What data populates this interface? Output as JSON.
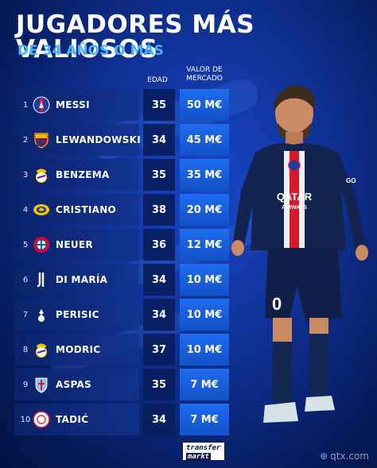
{
  "header": {
    "title": "JUGADORES MÁS VALIOSOS",
    "subtitle": "DE 34 AÑOS O MÁS"
  },
  "columns": {
    "age": "EDAD",
    "value_line1": "VALOR DE",
    "value_line2": "MERCADO"
  },
  "players": [
    {
      "rank": "1",
      "club_icon": "psg-crest-icon",
      "name": "MESSI",
      "age": "35",
      "value": "50 M€"
    },
    {
      "rank": "2",
      "club_icon": "barcelona-crest-icon",
      "name": "LEWANDOWSKI",
      "age": "34",
      "value": "45 M€"
    },
    {
      "rank": "3",
      "club_icon": "real-madrid-crest-icon",
      "name": "BENZEMA",
      "age": "35",
      "value": "35 M€"
    },
    {
      "rank": "4",
      "club_icon": "al-nassr-crest-icon",
      "name": "CRISTIANO",
      "age": "38",
      "value": "20 M€"
    },
    {
      "rank": "5",
      "club_icon": "bayern-crest-icon",
      "name": "NEUER",
      "age": "36",
      "value": "12 M€"
    },
    {
      "rank": "6",
      "club_icon": "juventus-crest-icon",
      "name": "DI MARÍA",
      "age": "34",
      "value": "10 M€"
    },
    {
      "rank": "7",
      "club_icon": "tottenham-crest-icon",
      "name": "PERISIC",
      "age": "34",
      "value": "10 M€"
    },
    {
      "rank": "8",
      "club_icon": "real-madrid-crest-icon",
      "name": "MODRIC",
      "age": "37",
      "value": "10 M€"
    },
    {
      "rank": "9",
      "club_icon": "celta-crest-icon",
      "name": "ASPAS",
      "age": "35",
      "value": "7 M€"
    },
    {
      "rank": "10",
      "club_icon": "ajax-crest-icon",
      "name": "TADIĆ",
      "age": "34",
      "value": "7 M€"
    }
  ],
  "logo": {
    "top": "transfer",
    "bottom": "markt"
  },
  "watermark": "qtx.com",
  "player_photo": {
    "shirt_sponsor_line1": "QATAR",
    "shirt_sponsor_line2": "AIRWAYS",
    "shirt_number": "0",
    "sleeve_text": "GO"
  },
  "colors": {
    "accent_blue": "#1e6cf0",
    "subtitle_blue": "#45b3ff",
    "background_dark": "#071a5a"
  }
}
